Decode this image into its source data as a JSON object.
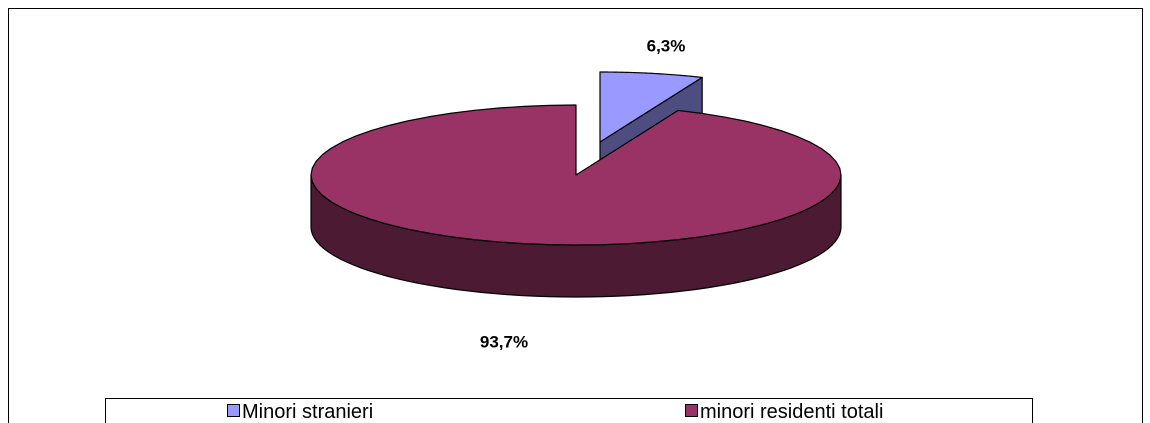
{
  "chart_data": {
    "type": "pie",
    "categories": [
      "Minori stranieri",
      "minori residenti totali"
    ],
    "values": [
      6.3,
      93.7
    ],
    "value_labels": [
      "6,3%",
      "93,7%"
    ],
    "colors": [
      "#9999ff",
      "#993366"
    ],
    "legend": "bottom"
  }
}
